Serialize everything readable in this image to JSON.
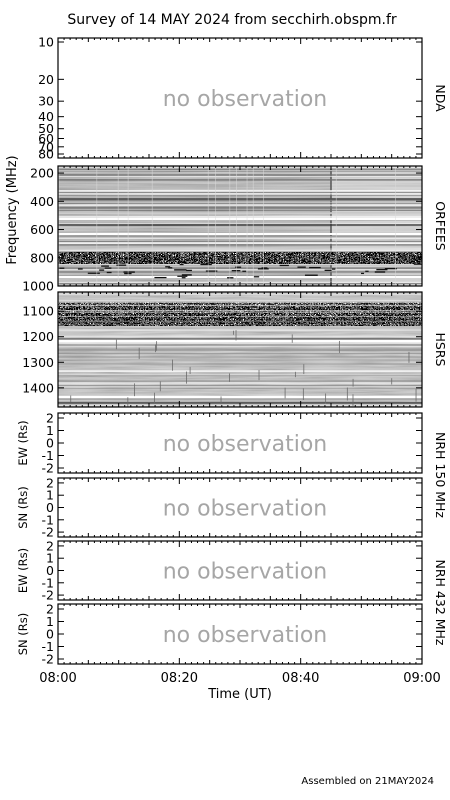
{
  "title": "Survey of 14 MAY 2024 from secchirh.obspm.fr",
  "footer": "Assembled on 21MAY2024",
  "chart_data": {
    "type": "heatmap",
    "x_axis": {
      "label": "Time (UT)",
      "range": [
        "08:00",
        "09:00"
      ],
      "tick_labels": [
        "08:00",
        "08:20",
        "08:40",
        "09:00"
      ]
    },
    "shared_ylabel": "Frequency (MHz)",
    "panels": [
      {
        "instrument": "NDA",
        "status": "no observation",
        "y_ticks": [
          10,
          20,
          30,
          40,
          50,
          60,
          70,
          80
        ],
        "ylim": [
          10,
          80
        ],
        "scale": "log",
        "observed": false
      },
      {
        "instrument": "ORFEES",
        "status": "",
        "y_ticks": [
          200,
          400,
          600,
          800,
          1000
        ],
        "ylim": [
          150,
          1000
        ],
        "observed": true,
        "data_gap_at": "08:45",
        "appearance": "grayscale dynamic spectrum with horizontal interference bands, strong noisy band near 750-800 MHz"
      },
      {
        "instrument": "HSRS",
        "status": "",
        "y_ticks": [
          1100,
          1200,
          1300,
          1400
        ],
        "ylim": [
          1025,
          1475
        ],
        "observed": true,
        "appearance": "grayscale dynamic spectrum, dense speckled band near 1080-1120 MHz"
      },
      {
        "instrument": "NRH 150 MHz",
        "status": "no observation",
        "ylabel": "EW (Rs)",
        "y_ticks": [
          2,
          1,
          0,
          -1,
          -2
        ],
        "ylim": [
          -2.4,
          2.4
        ],
        "observed": false
      },
      {
        "instrument": "NRH 150 MHz",
        "status": "no observation",
        "ylabel": "SN (Rs)",
        "y_ticks": [
          2,
          1,
          0,
          -1,
          -2
        ],
        "ylim": [
          -2.4,
          2.4
        ],
        "observed": false
      },
      {
        "instrument": "NRH 432 MHz",
        "status": "no observation",
        "ylabel": "EW (Rs)",
        "y_ticks": [
          2,
          1,
          0,
          -1,
          -2
        ],
        "ylim": [
          -2.4,
          2.4
        ],
        "observed": false
      },
      {
        "instrument": "NRH 432 MHz",
        "status": "no observation",
        "ylabel": "SN (Rs)",
        "y_ticks": [
          2,
          1,
          0,
          -1,
          -2
        ],
        "ylim": [
          -2.4,
          2.4
        ],
        "observed": false
      }
    ],
    "right_labels": [
      "NDA",
      "ORFEES",
      "HSRS",
      "NRH 150 MHz",
      "NRH 432 MHz"
    ]
  }
}
